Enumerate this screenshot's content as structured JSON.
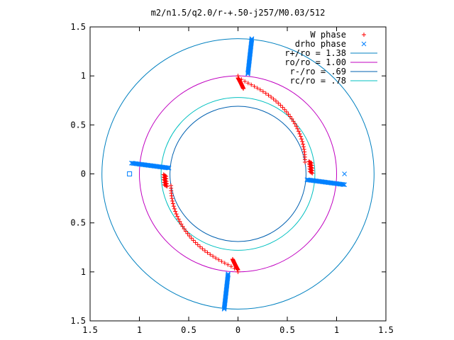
{
  "chart_data": {
    "type": "scatter",
    "title": "m2/n1.5/q2.0/r-+.50-j257/M0.03/512",
    "xlim": [
      -1.5,
      1.5
    ],
    "ylim": [
      -1.5,
      1.5
    ],
    "xticks": [
      {
        "value": -1.5,
        "label": "1.5"
      },
      {
        "value": -1.0,
        "label": "1"
      },
      {
        "value": -0.5,
        "label": "0.5"
      },
      {
        "value": 0,
        "label": "0"
      },
      {
        "value": 0.5,
        "label": "0.5"
      },
      {
        "value": 1.0,
        "label": "1"
      },
      {
        "value": 1.5,
        "label": "1.5"
      }
    ],
    "yticks": [
      {
        "value": 1.5,
        "label": "1.5"
      },
      {
        "value": 1.0,
        "label": "1"
      },
      {
        "value": 0.5,
        "label": "0.5"
      },
      {
        "value": 0,
        "label": "0"
      },
      {
        "value": -0.5,
        "label": "0.5"
      },
      {
        "value": -1.0,
        "label": "1"
      },
      {
        "value": -1.5,
        "label": "1.5"
      }
    ],
    "grid": false,
    "legend_position": "top-right",
    "series": [
      {
        "name": "W phase",
        "marker": "plus",
        "color": "#ff0000"
      },
      {
        "name": "drho phase",
        "marker": "x",
        "color": "#0080ff"
      }
    ],
    "circles": [
      {
        "name": "r+/ro = 1.38",
        "radius": 1.38,
        "color": "#0080c0"
      },
      {
        "name": "ro/ro = 1.00",
        "radius": 1.0,
        "color": "#c000c0"
      },
      {
        "name": "r-/ro = .69",
        "radius": 0.69,
        "color": "#0060b0"
      },
      {
        "name": "rc/ro = .78",
        "radius": 0.78,
        "color": "#00c0c0"
      }
    ],
    "w_phase_arm": {
      "r_range": [
        0.69,
        1.0
      ],
      "theta0_deg": 90,
      "turn_deg": 80,
      "symmetry": 2
    },
    "drho_bars": [
      {
        "x": [
          0.1,
          0.14
        ],
        "y": [
          1.02,
          1.38
        ]
      },
      {
        "x": [
          0.7,
          1.08
        ],
        "y": [
          -0.06,
          -0.11
        ]
      },
      {
        "x": [
          -0.1,
          -0.14
        ],
        "y": [
          -1.02,
          -1.38
        ]
      },
      {
        "x": [
          -0.7,
          -1.08
        ],
        "y": [
          0.06,
          0.11
        ]
      }
    ],
    "extra_markers": [
      {
        "shape": "square",
        "x": -1.1,
        "y": 0.0,
        "color": "#0080ff"
      },
      {
        "shape": "x",
        "x": 1.08,
        "y": 0.0,
        "color": "#0080ff"
      }
    ]
  }
}
